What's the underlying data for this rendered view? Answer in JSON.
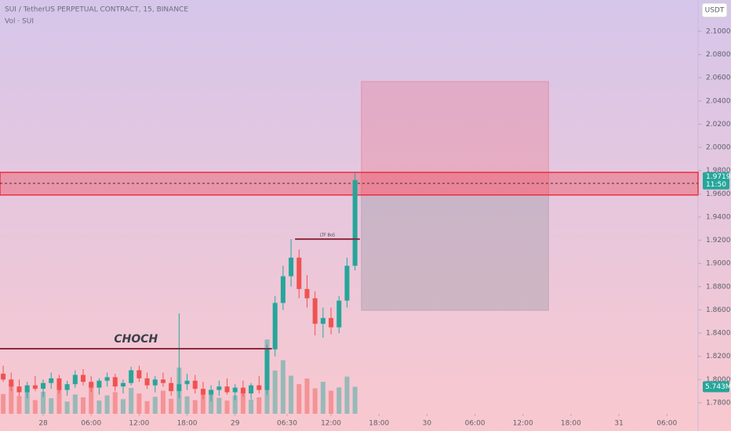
{
  "chart_data": {
    "type": "candlestick",
    "title": "SUI / TetherUS PERPETUAL CONTRACT, 15, BINANCE",
    "subtitle": "Vol · SUI",
    "currency": "USDT",
    "up_color": "#26a69a",
    "down_color": "#ef5350",
    "xlim": [
      -5.4,
      81.9
    ],
    "ylim": [
      1.7705,
      2.127
    ],
    "xticks": [
      {
        "value": 0,
        "label": "28"
      },
      {
        "value": 6,
        "label": "06:00"
      },
      {
        "value": 12,
        "label": "12:00"
      },
      {
        "value": 18,
        "label": "18:00"
      },
      {
        "value": 24,
        "label": "29"
      },
      {
        "value": 30.5,
        "label": "06:30"
      },
      {
        "value": 36,
        "label": "12:00"
      },
      {
        "value": 42,
        "label": "18:00"
      },
      {
        "value": 48,
        "label": "30"
      },
      {
        "value": 54,
        "label": "06:00"
      },
      {
        "value": 60,
        "label": "12:00"
      },
      {
        "value": 66,
        "label": "18:00"
      },
      {
        "value": 72,
        "label": "31"
      },
      {
        "value": 78,
        "label": "06:00"
      }
    ],
    "yticks": [
      {
        "value": 1.78,
        "label": "1.7800"
      },
      {
        "value": 1.8,
        "label": "1.8000"
      },
      {
        "value": 1.82,
        "label": "1.8200"
      },
      {
        "value": 1.84,
        "label": "1.8400"
      },
      {
        "value": 1.86,
        "label": "1.8600"
      },
      {
        "value": 1.88,
        "label": "1.8800"
      },
      {
        "value": 1.9,
        "label": "1.9000"
      },
      {
        "value": 1.92,
        "label": "1.9200"
      },
      {
        "value": 1.94,
        "label": "1.9400"
      },
      {
        "value": 1.96,
        "label": "1.9600"
      },
      {
        "value": 1.98,
        "label": "1.9800"
      },
      {
        "value": 2.0,
        "label": "2.0000"
      },
      {
        "value": 2.02,
        "label": "2.0200"
      },
      {
        "value": 2.04,
        "label": "2.0400"
      },
      {
        "value": 2.06,
        "label": "2.0600"
      },
      {
        "value": 2.08,
        "label": "2.0800"
      },
      {
        "value": 2.1,
        "label": "2.1000"
      }
    ],
    "x": [
      -5,
      -4,
      -3,
      -2,
      -1,
      0,
      1,
      2,
      3,
      4,
      5,
      6,
      7,
      8,
      9,
      10,
      11,
      12,
      13,
      14,
      15,
      16,
      17,
      18,
      19,
      20,
      21,
      22,
      23,
      24,
      25,
      26,
      27,
      28,
      29,
      30,
      31,
      32,
      33,
      34,
      35,
      36,
      37,
      38,
      39
    ],
    "open": [
      1.805,
      1.8,
      1.794,
      1.789,
      1.795,
      1.792,
      1.797,
      1.801,
      1.791,
      1.796,
      1.804,
      1.798,
      1.793,
      1.799,
      1.802,
      1.794,
      1.797,
      1.808,
      1.801,
      1.795,
      1.8,
      1.797,
      1.79,
      1.796,
      1.799,
      1.792,
      1.787,
      1.791,
      1.794,
      1.789,
      1.793,
      1.788,
      1.795,
      1.791,
      1.826,
      1.866,
      1.889,
      1.905,
      1.878,
      1.87,
      1.848,
      1.853,
      1.845,
      1.868,
      1.898
    ],
    "high": [
      1.812,
      1.806,
      1.8,
      1.798,
      1.803,
      1.8,
      1.806,
      1.804,
      1.799,
      1.808,
      1.809,
      1.803,
      1.801,
      1.806,
      1.805,
      1.8,
      1.811,
      1.812,
      1.806,
      1.803,
      1.806,
      1.802,
      1.857,
      1.805,
      1.804,
      1.798,
      1.795,
      1.799,
      1.801,
      1.796,
      1.799,
      1.797,
      1.803,
      1.83,
      1.872,
      1.898,
      1.921,
      1.912,
      1.89,
      1.876,
      1.862,
      1.862,
      1.872,
      1.905,
      1.978
    ],
    "low": [
      1.798,
      1.79,
      1.786,
      1.784,
      1.79,
      1.785,
      1.792,
      1.788,
      1.786,
      1.793,
      1.795,
      1.789,
      1.787,
      1.794,
      1.79,
      1.788,
      1.795,
      1.798,
      1.792,
      1.789,
      1.794,
      1.786,
      1.784,
      1.791,
      1.788,
      1.783,
      1.781,
      1.786,
      1.787,
      1.782,
      1.785,
      1.783,
      1.788,
      1.787,
      1.82,
      1.86,
      1.88,
      1.87,
      1.862,
      1.838,
      1.836,
      1.839,
      1.84,
      1.862,
      1.894
    ],
    "close": [
      1.8,
      1.794,
      1.789,
      1.795,
      1.792,
      1.797,
      1.801,
      1.791,
      1.796,
      1.804,
      1.798,
      1.793,
      1.799,
      1.802,
      1.794,
      1.797,
      1.808,
      1.801,
      1.795,
      1.8,
      1.797,
      1.79,
      1.796,
      1.799,
      1.792,
      1.787,
      1.791,
      1.794,
      1.789,
      1.793,
      1.788,
      1.795,
      1.791,
      1.826,
      1.866,
      1.889,
      1.905,
      1.878,
      1.87,
      1.848,
      1.853,
      1.845,
      1.868,
      1.898,
      1.9719
    ],
    "volume": [
      4200000,
      6100000,
      3800000,
      5200000,
      2900000,
      4700000,
      3300000,
      5800000,
      2600000,
      4100000,
      3500000,
      6400000,
      2800000,
      3900000,
      4600000,
      3100000,
      5500000,
      4300000,
      2700000,
      3600000,
      4900000,
      3200000,
      9800000,
      3700000,
      2900000,
      4400000,
      5100000,
      3400000,
      2800000,
      3900000,
      4600000,
      3000000,
      3500000,
      15800000,
      9200000,
      11400000,
      8100000,
      6300000,
      7500000,
      5400000,
      6800000,
      4900000,
      5600000,
      7900000,
      5743000
    ],
    "volume_max": 30000000,
    "last_price": {
      "value": 1.9719,
      "label": "1.9719"
    },
    "countdown": "11:50",
    "last_volume": {
      "value": 5743000,
      "label": "5.743M"
    },
    "annotations": [
      {
        "text": "CHOCH",
        "y": 1.8265,
        "x": [
          -5.4,
          28.6
        ]
      },
      {
        "text": "LTF BoS",
        "y": 1.921,
        "x": [
          31.5,
          39.6
        ]
      }
    ],
    "zone": {
      "y": [
        1.959,
        1.9785
      ],
      "dashed": 1.969
    },
    "position": {
      "x": [
        39.8,
        63.2
      ],
      "entry": 1.959,
      "stop": 2.0568,
      "target": 1.8596
    }
  }
}
